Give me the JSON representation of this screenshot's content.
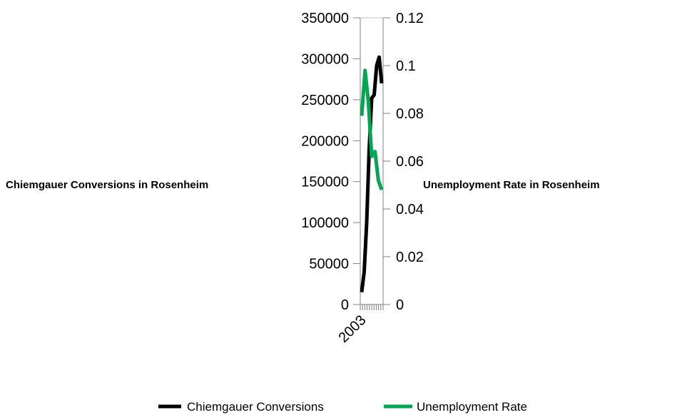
{
  "chart_data": {
    "type": "line",
    "x_tick_labels": [
      "2003"
    ],
    "y_left": {
      "label": "Chiemgauer Conversions in Rosenheim",
      "range": [
        0,
        350000
      ],
      "ticks": [
        "0",
        "50000",
        "100000",
        "150000",
        "200000",
        "250000",
        "300000",
        "350000"
      ]
    },
    "y_right": {
      "label": "Unemployment Rate in Rosenheim",
      "range": [
        0,
        0.12
      ],
      "ticks": [
        "0",
        "0.02",
        "0.04",
        "0.06",
        "0.08",
        "0.1",
        "0.12"
      ]
    },
    "x_count": 10,
    "series": [
      {
        "name": "Chiemgauer Conversions",
        "axis": "left",
        "color": "#000000",
        "values": [
          15000,
          40000,
          100000,
          190000,
          252000,
          256000,
          292000,
          302000,
          270000
        ]
      },
      {
        "name": "Unemployment Rate",
        "axis": "right",
        "color": "#00a651",
        "values": [
          0.079,
          0.098,
          0.085,
          0.062,
          0.064,
          0.052,
          0.048
        ]
      }
    ],
    "grid": false,
    "legend_position": "bottom"
  }
}
